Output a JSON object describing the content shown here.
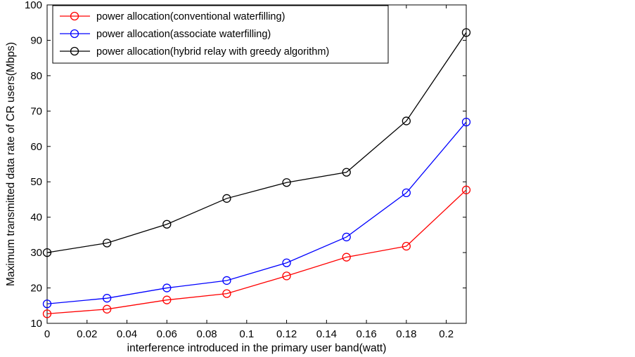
{
  "chart_data": {
    "type": "line",
    "title": "",
    "xlabel": "interference introduced in the primary user band(watt)",
    "ylabel": "Maximum transmitted data rate of CR users(Mbps)",
    "xlim": [
      0,
      0.21
    ],
    "ylim": [
      10,
      100
    ],
    "xticks": [
      0,
      0.02,
      0.04,
      0.06,
      0.08,
      0.1,
      0.12,
      0.14,
      0.16,
      0.18,
      0.2
    ],
    "xtick_labels": [
      "0",
      "0.02",
      "0.04",
      "0.06",
      "0.08",
      "0.1",
      "0.12",
      "0.14",
      "0.16",
      "0.18",
      "0.2"
    ],
    "yticks": [
      10,
      20,
      30,
      40,
      50,
      60,
      70,
      80,
      90,
      100
    ],
    "ytick_labels": [
      "10",
      "20",
      "30",
      "40",
      "50",
      "60",
      "70",
      "80",
      "90",
      "100"
    ],
    "grid": false,
    "legend_position": "top-left",
    "x": [
      0,
      0.03,
      0.06,
      0.09,
      0.12,
      0.15,
      0.18,
      0.21
    ],
    "series": [
      {
        "name": "power allocation(conventional waterfilling)",
        "color": "#ff0000",
        "marker": "circle",
        "values": [
          12.7,
          14.0,
          16.6,
          18.4,
          23.4,
          28.7,
          31.8,
          47.7
        ]
      },
      {
        "name": "power allocation(associate waterfilling)",
        "color": "#0000ff",
        "marker": "circle",
        "values": [
          15.5,
          17.1,
          20.0,
          22.1,
          27.1,
          34.4,
          46.9,
          66.9
        ]
      },
      {
        "name": "power allocation(hybrid relay with greedy algorithm)",
        "color": "#000000",
        "marker": "circle",
        "values": [
          30.0,
          32.7,
          38.0,
          45.3,
          49.8,
          52.7,
          67.2,
          92.2
        ]
      }
    ]
  }
}
